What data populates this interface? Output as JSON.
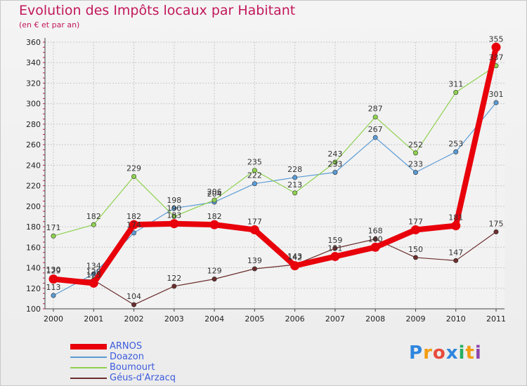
{
  "chart_data": {
    "type": "line",
    "title": "Evolution des Impôts locaux par Habitant",
    "subtitle": "(en € et par an)",
    "xlabel": "",
    "ylabel": "",
    "x": [
      "2000",
      "2001",
      "2002",
      "2003",
      "2004",
      "2005",
      "2006",
      "2007",
      "2008",
      "2009",
      "2010",
      "2011"
    ],
    "ylim": [
      100,
      360
    ],
    "yticks": [
      100,
      120,
      140,
      160,
      180,
      200,
      220,
      240,
      260,
      280,
      300,
      320,
      340,
      360
    ],
    "grid": true,
    "series": [
      {
        "name": "ARNOS",
        "color": "#e8000b",
        "emphasis": true,
        "values": [
          129,
          125,
          182,
          183,
          182,
          177,
          142,
          151,
          160,
          177,
          181,
          355
        ]
      },
      {
        "name": "Doazon",
        "color": "#5b9bd5",
        "values": [
          113,
          134,
          174,
          198,
          204,
          222,
          228,
          233,
          267,
          233,
          253,
          301
        ]
      },
      {
        "name": "Boumourt",
        "color": "#8fd14f",
        "values": [
          171,
          182,
          229,
          190,
          206,
          235,
          213,
          243,
          287,
          252,
          311,
          337
        ]
      },
      {
        "name": "Géus-d'Arzacq",
        "color": "#6b2d2d",
        "values": [
          130,
          128,
          104,
          122,
          129,
          139,
          143,
          159,
          168,
          150,
          147,
          175
        ]
      }
    ],
    "legend_position": "bottom-left"
  },
  "logo": {
    "letters": [
      "P",
      "r",
      "o",
      "x",
      "i",
      "t",
      "i"
    ],
    "colors": [
      "#2e86de",
      "#f39c12",
      "#e74c3c",
      "#2e86de",
      "#27ae60",
      "#f39c12",
      "#8e44ad"
    ]
  }
}
